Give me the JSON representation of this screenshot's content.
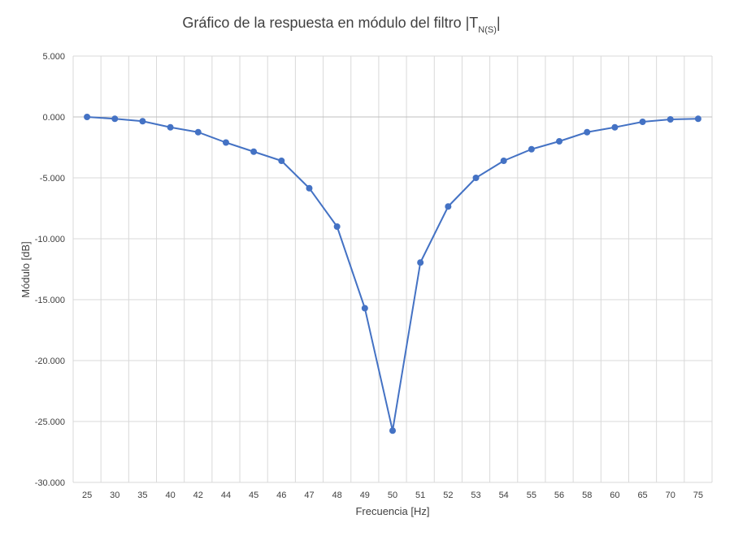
{
  "chart_data": {
    "type": "line",
    "title": "Gráfico de la respuesta en módulo del filtro |T",
    "title_subscript": "N(S)",
    "title_suffix": "|",
    "xlabel": "Frecuencia [Hz]",
    "ylabel": "Módulo [dB]",
    "categories": [
      "25",
      "30",
      "35",
      "40",
      "42",
      "44",
      "45",
      "46",
      "47",
      "48",
      "49",
      "50",
      "51",
      "52",
      "53",
      "54",
      "55",
      "56",
      "58",
      "60",
      "65",
      "70",
      "75"
    ],
    "series": [
      {
        "values": [
          0.0,
          -0.15,
          -0.35,
          -0.85,
          -1.25,
          -2.1,
          -2.85,
          -3.6,
          -5.85,
          -9.0,
          -15.7,
          -25.75,
          -11.95,
          -7.35,
          -5.0,
          -3.6,
          -2.65,
          -2.0,
          -1.25,
          -0.85,
          -0.4,
          -0.2,
          -0.15
        ]
      }
    ],
    "ylim": [
      -30,
      5
    ],
    "y_ticks": [
      "5.000",
      "0.000",
      "-5.000",
      "-10.000",
      "-15.000",
      "-20.000",
      "-25.000",
      "-30.000"
    ],
    "y_tick_values": [
      5,
      0,
      -5,
      -10,
      -15,
      -20,
      -25,
      -30
    ],
    "grid": true,
    "legend": "none",
    "colors": {
      "series": "#4472c4",
      "grid": "#d9d9d9",
      "text": "#404040"
    }
  }
}
